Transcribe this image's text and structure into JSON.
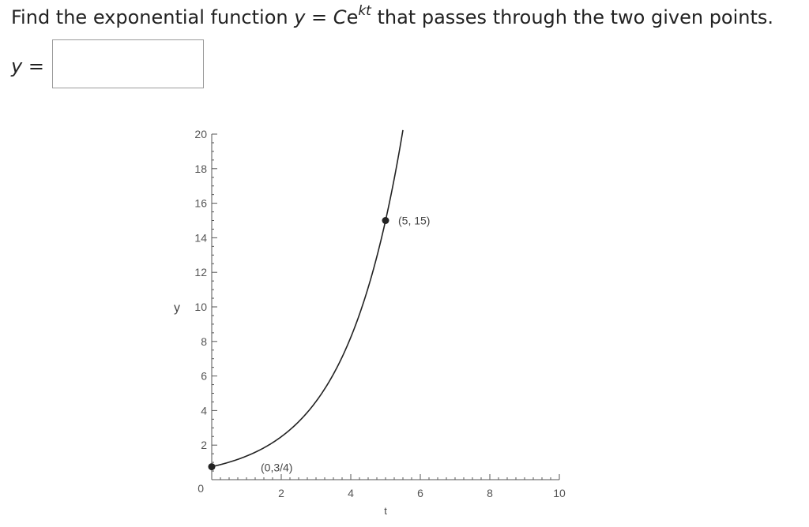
{
  "question": {
    "prefix": "Find the exponential function ",
    "y_var": "y",
    "equals": " = ",
    "C_var": "C",
    "e_base": "e",
    "exponent": "kt",
    "suffix": " that passes through the two given points."
  },
  "answer": {
    "label_var": "y",
    "label_equals": " =",
    "value": ""
  },
  "chart_data": {
    "type": "line",
    "xlabel": "t",
    "ylabel": "y",
    "xlim": [
      0,
      10
    ],
    "ylim": [
      0,
      20
    ],
    "x_ticks": [
      "2",
      "4",
      "6",
      "8",
      "10"
    ],
    "y_ticks": [
      "0",
      "2",
      "4",
      "6",
      "8",
      "10",
      "12",
      "14",
      "16",
      "18",
      "20"
    ],
    "curve": {
      "C": 0.75,
      "k": 0.5991,
      "t_range": [
        0,
        5.5
      ]
    },
    "points": [
      {
        "x": 0,
        "y": 0.75,
        "label": "(0,3/4)"
      },
      {
        "x": 5,
        "y": 15,
        "label": "(5, 15)"
      }
    ],
    "colors": {
      "curve": "#222222",
      "axis": "#555555",
      "point": "#222222"
    }
  }
}
